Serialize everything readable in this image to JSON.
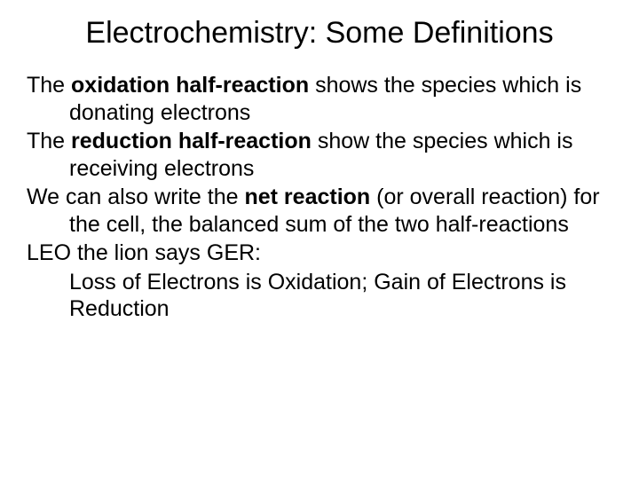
{
  "slide": {
    "title": "Electrochemistry: Some Definitions",
    "title_fontsize": 34,
    "body_fontsize": 25,
    "background_color": "#ffffff",
    "text_color": "#000000",
    "font_family": "Arial",
    "p1_a": "The ",
    "p1_b": "oxidation half-reaction",
    "p1_c": " shows the species which is donating electrons",
    "p2_a": "The ",
    "p2_b": "reduction half-reaction",
    "p2_c": " show the species which is receiving electrons",
    "p3_a": "We can also write the ",
    "p3_b": "net reaction",
    "p3_c": " (or overall reaction) for the cell, the balanced sum of the two half-reactions",
    "p4": "LEO the lion says GER:",
    "p5": "Loss of Electrons is Oxidation; Gain of Electrons is Reduction"
  }
}
